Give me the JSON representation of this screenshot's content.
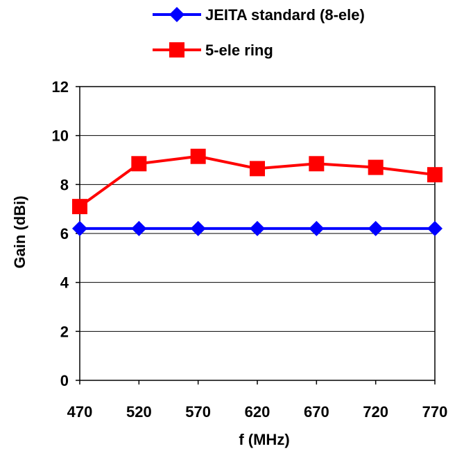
{
  "chart_data": {
    "type": "line",
    "title": "",
    "xlabel": "f (MHz)",
    "ylabel": "Gain (dBi)",
    "categories": [
      "470",
      "520",
      "570",
      "620",
      "670",
      "720",
      "770"
    ],
    "x": [
      470,
      520,
      570,
      620,
      670,
      720,
      770
    ],
    "ylim": [
      0,
      12
    ],
    "yticks": [
      0,
      2,
      4,
      6,
      8,
      10,
      12
    ],
    "yticks_labels": [
      "0",
      "2",
      "4",
      "6",
      "8",
      "10",
      "12"
    ],
    "grid": "horizontal",
    "legend_position": "top-right",
    "series": [
      {
        "name": "JEITA standard (8-ele)",
        "color": "#0000ff",
        "marker": "diamond",
        "values": [
          6.2,
          6.2,
          6.2,
          6.2,
          6.2,
          6.2,
          6.2
        ]
      },
      {
        "name": "5-ele ring",
        "color": "#ff0000",
        "marker": "square",
        "values": [
          7.1,
          8.85,
          9.15,
          8.65,
          8.85,
          8.7,
          8.4
        ]
      }
    ]
  }
}
